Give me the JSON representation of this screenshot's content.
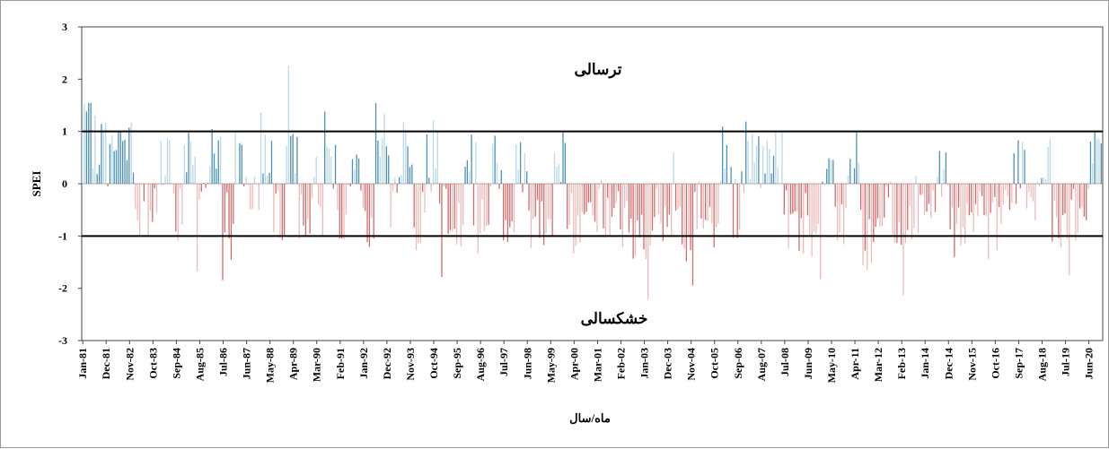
{
  "chart_data": {
    "type": "bar",
    "title": "",
    "ylabel": "SPEI",
    "xlabel": "ماه/سال",
    "ylim": [
      -3,
      3
    ],
    "yticks": [
      3,
      2,
      1,
      0,
      -1,
      -2,
      -3
    ],
    "x_range": [
      "Jan-81",
      "Dec-20"
    ],
    "series_frequency": "monthly",
    "x_tick_labels": [
      "Jan-81",
      "Dec-81",
      "Nov-82",
      "Oct-83",
      "Sep-84",
      "Aug-85",
      "Jul-86",
      "Jun-87",
      "May-88",
      "Apr-89",
      "Mar-90",
      "Feb-91",
      "Jan-92",
      "Dec-92",
      "Nov-93",
      "Oct-94",
      "Sep-95",
      "Aug-96",
      "Jul-97",
      "Jun-98",
      "May-99",
      "Apr-00",
      "Mar-01",
      "Feb-02",
      "Jan-03",
      "Dec-03",
      "Nov-04",
      "Oct-05",
      "Sep-06",
      "Aug-07",
      "Jul-08",
      "Jun-09",
      "May-10",
      "Apr-11",
      "Mar-12",
      "Feb-13",
      "Jan-14",
      "Dec-14",
      "Nov-15",
      "Oct-16",
      "Sep-17",
      "Aug-18",
      "Jul-19",
      "Jun-20"
    ],
    "reference_lines": [
      1,
      -1
    ],
    "annotations": {
      "wet": "ترسالی",
      "dry": "خشکسالی"
    },
    "colors": {
      "positive": "#4a90b8",
      "positive_light": "#b9d8ea",
      "negative": "#d26b6b",
      "negative_light": "#f0b9b9",
      "reference_line": "#000000"
    },
    "semester_values": [
      0.9,
      0.75,
      0.55,
      0.72,
      -0.35,
      -0.45,
      0.3,
      -0.5,
      0.55,
      -0.5,
      0.7,
      -0.4,
      0.45,
      -0.5,
      0.8,
      -0.55,
      0.6,
      -0.45,
      -0.5,
      0.5,
      -0.6,
      0.35,
      -0.6,
      0.9,
      -0.4,
      0.65,
      -0.7,
      0.7,
      -0.4,
      -0.6,
      0.45,
      -0.7,
      0.55,
      -0.6,
      0.4,
      -0.65,
      -0.55,
      0.5,
      -0.7,
      -0.75,
      -0.4,
      -0.8,
      -0.6,
      -0.95,
      -1.0,
      -0.7,
      -0.5,
      -1.2,
      -0.6,
      -0.7,
      0.5,
      -0.4,
      0.55,
      0.45,
      0.35,
      -0.6,
      -0.75,
      -0.8,
      0.55,
      -0.8,
      0.4,
      -1.0,
      -1.1,
      -0.6,
      -0.8,
      -0.5,
      -0.7,
      0.4,
      -0.8,
      -0.9,
      -0.4,
      -0.8,
      -0.7,
      0.45,
      -0.6,
      0.55,
      -0.5,
      -0.55,
      -0.7,
      0.6
    ]
  }
}
